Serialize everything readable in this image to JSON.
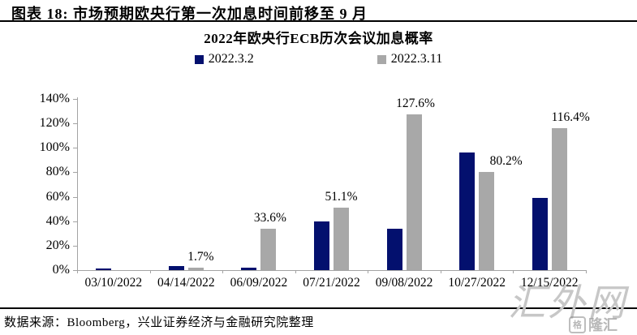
{
  "header": {
    "title": "图表 18: 市场预期欧央行第一次加息时间前移至 9 月"
  },
  "chart_data": {
    "type": "bar",
    "title": "2022年欧央行ECB历次会议加息概率",
    "categories": [
      "03/10/2022",
      "04/14/2022",
      "06/09/2022",
      "07/21/2022",
      "09/08/2022",
      "10/27/2022",
      "12/15/2022"
    ],
    "series": [
      {
        "name": "2022.3.2",
        "color": "#03106e",
        "values": [
          1.4,
          3.6,
          2.0,
          40.0,
          34.0,
          96.0,
          59.0
        ],
        "labels": [
          "",
          "",
          "",
          "",
          "",
          "",
          ""
        ],
        "label_dx": [
          0,
          0,
          0,
          0,
          0,
          0,
          0
        ]
      },
      {
        "name": "2022.3.11",
        "color": "#a8a8a8",
        "values": [
          0,
          1.7,
          33.6,
          51.1,
          127.6,
          80.2,
          116.4
        ],
        "labels": [
          "",
          "1.7%",
          "33.6%",
          "51.1%",
          "127.6%",
          "80.2%",
          "116.4%"
        ],
        "label_dx": [
          0,
          6,
          2,
          0,
          2,
          24,
          14
        ]
      }
    ],
    "xlabel": "",
    "ylabel": "",
    "ylim": [
      0,
      140
    ],
    "ytick_step": 20,
    "ytick_labels": [
      "0%",
      "20%",
      "40%",
      "60%",
      "80%",
      "100%",
      "120%",
      "140%"
    ],
    "legend_position": "top",
    "grid": false
  },
  "footer": {
    "source": "数据来源：Bloomberg，兴业证券经济与金融研究院整理"
  },
  "watermark": {
    "text": "汇外网",
    "badge_icon": "格",
    "badge_text": "隆汇"
  }
}
